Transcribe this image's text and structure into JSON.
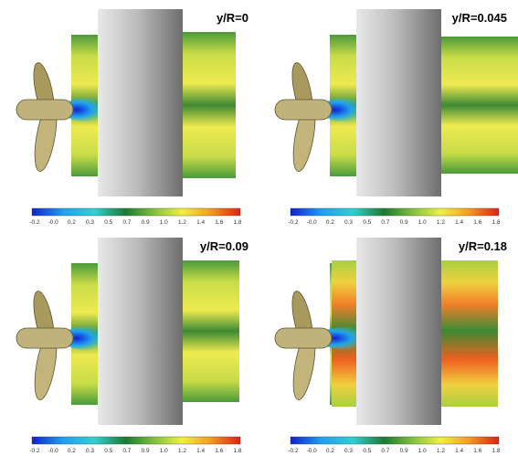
{
  "panels": [
    {
      "label": "y/R=0"
    },
    {
      "label": "y/R=0.045"
    },
    {
      "label": "y/R=0.09"
    },
    {
      "label": "y/R=0.18"
    }
  ],
  "colorbar_ticks": [
    "-0.2",
    "-0.0",
    "0.2",
    "0.3",
    "0.5",
    "0.7",
    "0.9",
    "1.0",
    "1.2",
    "1.4",
    "1.6",
    "1.8"
  ]
}
